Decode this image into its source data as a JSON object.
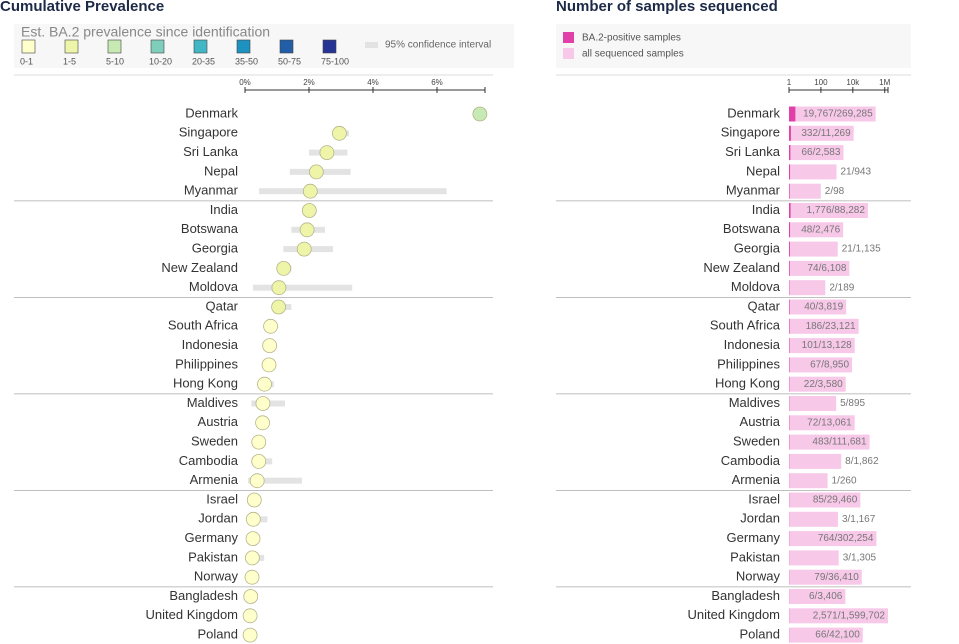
{
  "chart_data": [
    {
      "type": "dot",
      "title": "Cumulative Prevalence",
      "legend": {
        "title": "Est. BA.2 prevalence since identification",
        "items": [
          {
            "label": "0-1",
            "color": "#ffffcc"
          },
          {
            "label": "1-5",
            "color": "#eef5a8"
          },
          {
            "label": "5-10",
            "color": "#c7e9b4"
          },
          {
            "label": "10-20",
            "color": "#7fcdbb"
          },
          {
            "label": "20-35",
            "color": "#41b6c4"
          },
          {
            "label": "35-50",
            "color": "#1d91c0"
          },
          {
            "label": "50-75",
            "color": "#225ea8"
          },
          {
            "label": "75-100",
            "color": "#253494"
          }
        ],
        "ci_label": "95% confidence interval"
      },
      "categories": [
        "Denmark",
        "Singapore",
        "Sri Lanka",
        "Nepal",
        "Myanmar",
        "India",
        "Botswana",
        "Georgia",
        "New Zealand",
        "Moldova",
        "Qatar",
        "South Africa",
        "Indonesia",
        "Philippines",
        "Hong Kong",
        "Maldives",
        "Austria",
        "Sweden",
        "Cambodia",
        "Armenia",
        "Israel",
        "Jordan",
        "Germany",
        "Pakistan",
        "Norway",
        "Bangladesh",
        "United Kingdom",
        "Poland"
      ],
      "values": [
        7.34,
        2.95,
        2.56,
        2.23,
        2.04,
        2.01,
        1.94,
        1.85,
        1.21,
        1.06,
        1.05,
        0.8,
        0.77,
        0.75,
        0.61,
        0.56,
        0.55,
        0.43,
        0.43,
        0.38,
        0.29,
        0.26,
        0.25,
        0.23,
        0.22,
        0.18,
        0.16,
        0.16
      ],
      "ci_low": [
        7.2,
        2.75,
        2.0,
        1.4,
        0.44,
        1.9,
        1.45,
        1.2,
        1.0,
        0.25,
        0.85,
        0.7,
        0.6,
        0.55,
        0.4,
        0.2,
        0.4,
        0.4,
        0.2,
        0.1,
        0.25,
        0.1,
        0.24,
        0.05,
        0.17,
        0.07,
        0.15,
        0.12
      ],
      "ci_high": [
        7.45,
        3.25,
        3.2,
        3.3,
        6.3,
        2.1,
        2.5,
        2.75,
        1.45,
        3.35,
        1.45,
        0.9,
        0.95,
        0.95,
        0.9,
        1.25,
        0.7,
        0.47,
        0.85,
        1.78,
        0.33,
        0.7,
        0.27,
        0.6,
        0.27,
        0.4,
        0.17,
        0.2
      ],
      "colors": [
        "#c7e9b4",
        "#eef5a8",
        "#eef5a8",
        "#eef5a8",
        "#eef5a8",
        "#eef5a8",
        "#eef5a8",
        "#eef5a8",
        "#eef5a8",
        "#eef5a8",
        "#eef5a8",
        "#ffffcc",
        "#ffffcc",
        "#ffffcc",
        "#ffffcc",
        "#ffffcc",
        "#ffffcc",
        "#ffffcc",
        "#ffffcc",
        "#ffffcc",
        "#ffffcc",
        "#ffffcc",
        "#ffffcc",
        "#ffffcc",
        "#ffffcc",
        "#ffffcc",
        "#ffffcc",
        "#ffffcc"
      ],
      "ci_color": "#e3e3e3",
      "xlim": [
        0,
        7.5
      ],
      "xticks": [
        {
          "value": 0,
          "label": "0%"
        },
        {
          "value": 2,
          "label": "2%"
        },
        {
          "value": 4,
          "label": "4%"
        },
        {
          "value": 6,
          "label": "6%"
        }
      ]
    },
    {
      "type": "bar",
      "title": "Number of samples sequenced",
      "log_scale": true,
      "categories": [
        "Denmark",
        "Singapore",
        "Sri Lanka",
        "Nepal",
        "Myanmar",
        "India",
        "Botswana",
        "Georgia",
        "New Zealand",
        "Moldova",
        "Qatar",
        "South Africa",
        "Indonesia",
        "Philippines",
        "Hong Kong",
        "Maldives",
        "Austria",
        "Sweden",
        "Cambodia",
        "Armenia",
        "Israel",
        "Jordan",
        "Germany",
        "Pakistan",
        "Norway",
        "Bangladesh",
        "United Kingdom",
        "Poland"
      ],
      "series": [
        {
          "name": "BA.2-positive samples",
          "color": "#e040a8",
          "values": [
            19767,
            332,
            66,
            21,
            2,
            1776,
            48,
            21,
            74,
            2,
            40,
            186,
            101,
            67,
            22,
            5,
            72,
            483,
            8,
            1,
            85,
            3,
            764,
            3,
            79,
            6,
            2571,
            66
          ]
        },
        {
          "name": "all sequenced samples",
          "color": "#f7c8e8",
          "values": [
            269285,
            11269,
            2583,
            943,
            98,
            88282,
            2476,
            1135,
            6108,
            189,
            3819,
            23121,
            13128,
            8950,
            3580,
            895,
            13061,
            111681,
            1862,
            260,
            29460,
            1167,
            302254,
            1305,
            36410,
            3406,
            1599702,
            42100
          ],
          "value_labels": [
            "19,767/269,285",
            "332/11,269",
            "66/2,583",
            "21/943",
            "2/98",
            "1,776/88,282",
            "48/2,476",
            "21/1,135",
            "74/6,108",
            "2/189",
            "40/3,819",
            "186/23,121",
            "101/13,128",
            "67/8,950",
            "22/3,580",
            "5/895",
            "72/13,061",
            "483/111,681",
            "8/1,862",
            "1/260",
            "85/29,460",
            "3/1,167",
            "764/302,254",
            "3/1,305",
            "79/36,410",
            "6/3,406",
            "2,571/1,599,702",
            "66/42,100"
          ]
        }
      ],
      "xlim": [
        1,
        1600000
      ],
      "xticks": [
        1,
        100,
        {
          "value": 10000,
          "label": "10k"
        },
        {
          "value": 1000000,
          "label": "1M"
        }
      ]
    }
  ]
}
